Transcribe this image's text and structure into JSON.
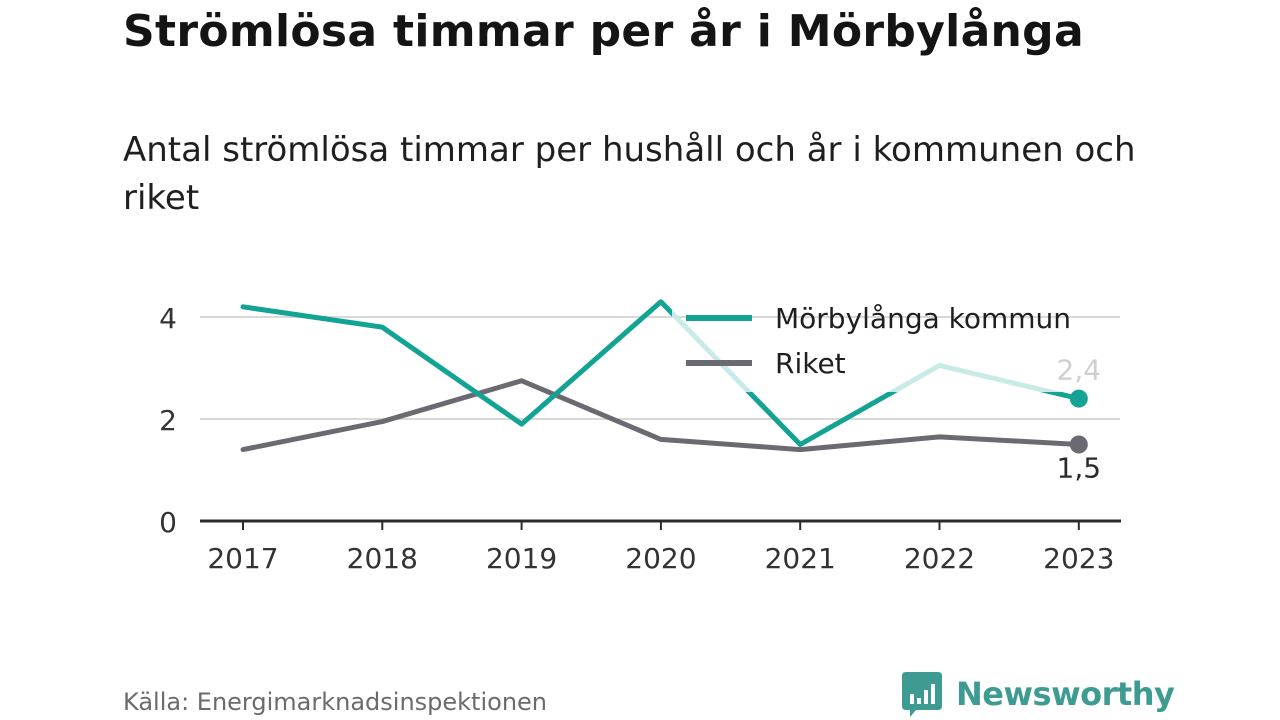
{
  "title": "Strömlösa timmar per år i Mörbylånga",
  "subtitle": "Antal strömlösa timmar per hushåll och år i kommunen och riket",
  "source": "Källa: Energimarknadsinspektionen",
  "brand": {
    "name": "Newsworthy",
    "icon": "newsworthy-chart-icon",
    "color": "#3e9b92"
  },
  "colors": {
    "teal": "#12a394",
    "teal_light": "#c8ebe7",
    "gray": "#6b6a73",
    "grid": "#d9d9d9",
    "axis": "#2b2b2b"
  },
  "chart_data": {
    "type": "line",
    "x": [
      "2017",
      "2018",
      "2019",
      "2020",
      "2021",
      "2022",
      "2023"
    ],
    "ylim": [
      0,
      4.6
    ],
    "yticks": [
      "0",
      "2",
      "4"
    ],
    "grid": true,
    "legend_position": "top-right",
    "series": [
      {
        "name": "Mörbylånga kommun",
        "values": [
          4.2,
          3.8,
          1.9,
          4.3,
          1.5,
          3.05,
          2.4
        ],
        "color": "#12a394",
        "end_label": "2,4"
      },
      {
        "name": "Riket",
        "values": [
          1.4,
          1.95,
          2.75,
          1.6,
          1.4,
          1.65,
          1.5
        ],
        "color": "#6b6a73",
        "end_label": "1,5"
      }
    ]
  }
}
